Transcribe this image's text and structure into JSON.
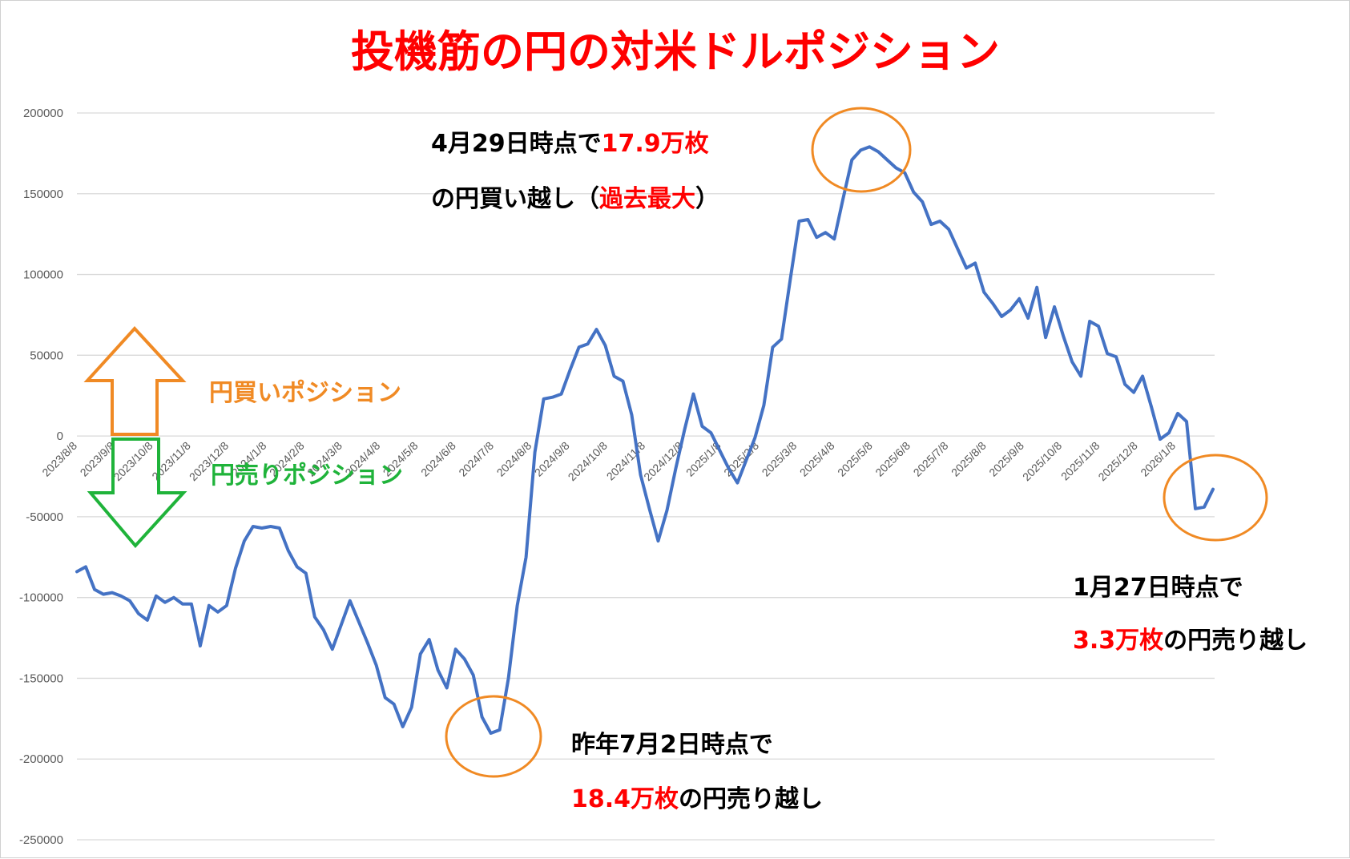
{
  "chart_data": {
    "type": "line",
    "title": "投機筋の円の対米ドルポジション",
    "xlabel": "",
    "ylabel": "",
    "ylim": [
      -250000,
      200000
    ],
    "y_ticks": [
      200000,
      150000,
      100000,
      50000,
      0,
      -50000,
      -100000,
      -150000,
      -200000,
      -250000
    ],
    "x_tick_labels": [
      "2023/8/8",
      "2023/9/8",
      "2023/10/8",
      "2023/11/8",
      "2023/12/8",
      "2024/1/8",
      "2024/2/8",
      "2024/3/8",
      "2024/4/8",
      "2024/5/8",
      "2024/6/8",
      "2024/7/8",
      "2024/8/8",
      "2024/9/8",
      "2024/10/8",
      "2024/11/8",
      "2024/12/8",
      "2025/1/8",
      "2025/2/8",
      "2025/3/8",
      "2025/4/8",
      "2025/5/8",
      "2025/6/8",
      "2025/7/8",
      "2025/8/8",
      "2025/9/8",
      "2025/10/8",
      "2025/11/8",
      "2025/12/8",
      "2026/1/8"
    ],
    "grid": true,
    "legend": "none",
    "series": [
      {
        "color": "#4472c4",
        "values": [
          -84000,
          -81000,
          -95000,
          -98000,
          -97000,
          -99000,
          -102000,
          -110000,
          -114000,
          -99000,
          -103000,
          -100000,
          -104000,
          -104000,
          -130000,
          -105000,
          -109000,
          -105000,
          -82000,
          -65000,
          -56000,
          -57000,
          -56000,
          -57000,
          -71000,
          -81000,
          -85000,
          -112000,
          -120000,
          -132000,
          -117000,
          -102000,
          -115000,
          -128000,
          -142000,
          -162000,
          -166000,
          -180000,
          -168000,
          -135000,
          -126000,
          -145000,
          -156000,
          -132000,
          -138000,
          -148000,
          -174000,
          -184000,
          -182000,
          -150000,
          -105000,
          -75000,
          -10000,
          23000,
          24000,
          26000,
          41000,
          55000,
          57000,
          66000,
          56000,
          37000,
          34000,
          13000,
          -24000,
          -45000,
          -65000,
          -46000,
          -20000,
          4000,
          26000,
          6000,
          2000,
          -9000,
          -20000,
          -29000,
          -15000,
          -1000,
          19000,
          55000,
          60000,
          97000,
          133000,
          134000,
          123000,
          126000,
          122000,
          147000,
          171000,
          177000,
          179000,
          176000,
          171000,
          166000,
          163000,
          151000,
          145000,
          131000,
          133000,
          128000,
          116000,
          104000,
          107000,
          89000,
          82000,
          74000,
          78000,
          85000,
          73000,
          92000,
          61000,
          80000,
          62000,
          46000,
          37000,
          71000,
          68000,
          51000,
          49000,
          32000,
          27000,
          37000,
          18000,
          -2000,
          2000,
          14000,
          9000,
          -45000,
          -44000,
          -33000
        ]
      }
    ],
    "annotations": [
      {
        "lines": [
          [
            {
              "text": "4月29日時点で",
              "color": "black"
            },
            {
              "text": "17.9万枚",
              "color": "red"
            }
          ],
          [
            {
              "text": "の円買い越し（",
              "color": "black"
            },
            {
              "text": "過去最大",
              "color": "red"
            },
            {
              "text": "）",
              "color": "black"
            }
          ]
        ]
      },
      {
        "lines": [
          [
            {
              "text": "1月27日時点で",
              "color": "black"
            }
          ],
          [
            {
              "text": "3.3万枚",
              "color": "red"
            },
            {
              "text": "の円売り越し",
              "color": "black"
            }
          ]
        ]
      },
      {
        "lines": [
          [
            {
              "text": "昨年7月2日時点で",
              "color": "black"
            }
          ],
          [
            {
              "text": "18.4万枚",
              "color": "red"
            },
            {
              "text": "の円売り越し",
              "color": "black"
            }
          ]
        ]
      }
    ],
    "arrow_labels": {
      "buy": "円買いポジション",
      "sell": "円売りポジション"
    },
    "colors": {
      "line": "#4472c4",
      "circle": "#f08a24",
      "buy_arrow": "#f08a24",
      "sell_arrow": "#1fb33a",
      "highlight": "#ff0000",
      "grid": "#d9d9d9"
    }
  }
}
